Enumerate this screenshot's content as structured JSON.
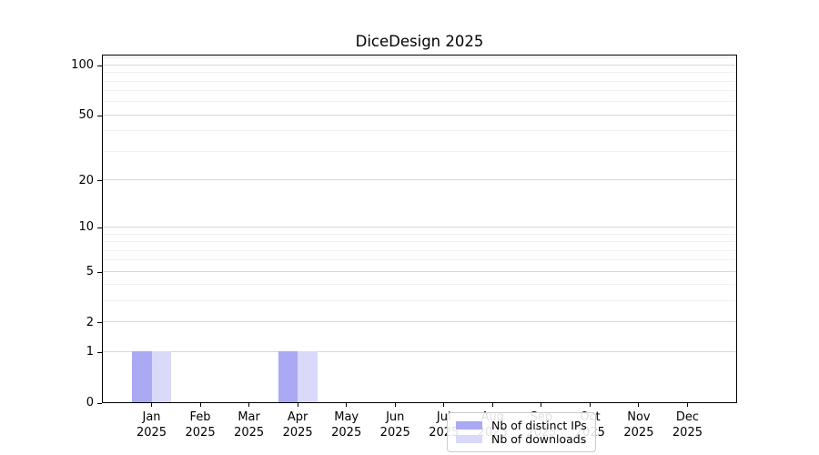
{
  "chart_data": {
    "type": "bar",
    "title": "DiceDesign 2025",
    "categories": [
      {
        "month": "Jan",
        "year": "2025"
      },
      {
        "month": "Feb",
        "year": "2025"
      },
      {
        "month": "Mar",
        "year": "2025"
      },
      {
        "month": "Apr",
        "year": "2025"
      },
      {
        "month": "May",
        "year": "2025"
      },
      {
        "month": "Jun",
        "year": "2025"
      },
      {
        "month": "Jul",
        "year": "2025"
      },
      {
        "month": "Aug",
        "year": "2025"
      },
      {
        "month": "Sep",
        "year": "2025"
      },
      {
        "month": "Oct",
        "year": "2025"
      },
      {
        "month": "Nov",
        "year": "2025"
      },
      {
        "month": "Dec",
        "year": "2025"
      }
    ],
    "series": [
      {
        "name": "Nb of distinct IPs",
        "color": "#a9a9f4",
        "values": [
          1,
          0,
          0,
          1,
          0,
          0,
          0,
          0,
          0,
          0,
          0,
          0
        ]
      },
      {
        "name": "Nb of downloads",
        "color": "#d9d9fa",
        "values": [
          1,
          0,
          0,
          1,
          0,
          0,
          0,
          0,
          0,
          0,
          0,
          0
        ]
      }
    ],
    "y_axis": {
      "scale": "log1p",
      "ticks": [
        0,
        1,
        2,
        5,
        10,
        20,
        50,
        100
      ],
      "minor_ticks": [
        3,
        4,
        6,
        7,
        8,
        9,
        30,
        40,
        60,
        70,
        80,
        90,
        110
      ],
      "max": 114
    },
    "x_axis": {
      "tick_count": 12
    },
    "grid": {
      "major_color": "#d6d6d6",
      "minor_color": "#f0f0f0"
    },
    "legend": {
      "position": "lower center"
    }
  }
}
